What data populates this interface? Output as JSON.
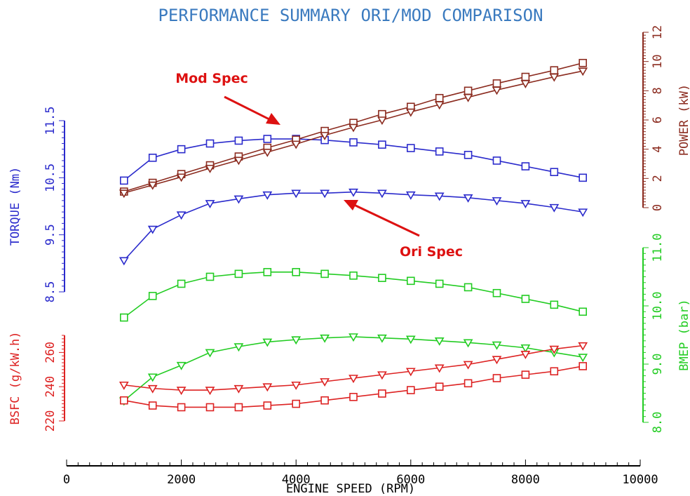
{
  "chart_data": {
    "type": "line",
    "title": "PERFORMANCE SUMMARY ORI/MOD COMPARISON",
    "xlabel": "ENGINE SPEED (RPM)",
    "xlim": [
      0,
      10000
    ],
    "x_ticks": [
      "0",
      "2000",
      "4000",
      "6000",
      "8000",
      "10000"
    ],
    "x": [
      1000,
      1500,
      2000,
      2500,
      3000,
      3500,
      4000,
      4500,
      5000,
      5500,
      6000,
      6500,
      7000,
      7500,
      8000,
      8500,
      9000
    ],
    "grid": false,
    "colors": {
      "title": "#3a7abf",
      "torque": "#2b2bcc",
      "power": "#8b2b1f",
      "bmep": "#22cc22",
      "bsfc": "#dd2222",
      "annotation": "#dd1111"
    },
    "axes": {
      "torque": {
        "label": "TORQUE (Nm)",
        "lim": [
          8.5,
          11.5
        ],
        "ticks": [
          "8.5",
          "9.5",
          "10.5",
          "11.5"
        ]
      },
      "power": {
        "label": "POWER (kW)",
        "lim": [
          0,
          12
        ],
        "ticks": [
          "0",
          "2",
          "4",
          "6",
          "8",
          "10",
          "12"
        ]
      },
      "bmep": {
        "label": "BMEP (bar)",
        "lim": [
          8.0,
          11.0
        ],
        "ticks": [
          "8.0",
          "9.0",
          "10.0",
          "11.0"
        ]
      },
      "bsfc": {
        "label": "BSFC (g/kW.h)",
        "lim": [
          220,
          270
        ],
        "ticks": [
          "220",
          "240",
          "260"
        ]
      }
    },
    "series": [
      {
        "quantity": "torque",
        "marker": "square",
        "values": [
          10.45,
          10.85,
          11.0,
          11.1,
          11.15,
          11.18,
          11.18,
          11.16,
          11.12,
          11.08,
          11.02,
          10.96,
          10.9,
          10.8,
          10.7,
          10.6,
          10.5
        ]
      },
      {
        "quantity": "torque",
        "marker": "triangle",
        "values": [
          9.05,
          9.6,
          9.85,
          10.05,
          10.13,
          10.2,
          10.23,
          10.23,
          10.25,
          10.23,
          10.2,
          10.18,
          10.15,
          10.1,
          10.05,
          9.98,
          9.9
        ]
      },
      {
        "quantity": "power",
        "marker": "square",
        "values": [
          1.1,
          1.7,
          2.3,
          2.9,
          3.5,
          4.1,
          4.65,
          5.25,
          5.8,
          6.4,
          6.9,
          7.5,
          8.0,
          8.5,
          8.95,
          9.4,
          9.9
        ]
      },
      {
        "quantity": "power",
        "marker": "triangle",
        "values": [
          1.0,
          1.55,
          2.1,
          2.7,
          3.25,
          3.8,
          4.35,
          4.95,
          5.5,
          6.0,
          6.55,
          7.05,
          7.55,
          8.05,
          8.5,
          8.95,
          9.35
        ]
      },
      {
        "quantity": "bmep",
        "marker": "square",
        "values": [
          9.8,
          10.17,
          10.38,
          10.5,
          10.55,
          10.58,
          10.58,
          10.55,
          10.52,
          10.48,
          10.43,
          10.38,
          10.32,
          10.22,
          10.12,
          10.02,
          9.9
        ]
      },
      {
        "quantity": "bmep",
        "marker": "triangle",
        "values": [
          8.37,
          8.78,
          8.98,
          9.2,
          9.3,
          9.38,
          9.42,
          9.45,
          9.47,
          9.45,
          9.43,
          9.4,
          9.37,
          9.33,
          9.28,
          9.2,
          9.12
        ]
      },
      {
        "quantity": "bsfc",
        "marker": "square",
        "values": [
          232,
          229,
          228,
          228,
          228,
          229,
          230,
          232,
          234,
          236,
          238,
          240,
          242,
          245,
          247,
          249,
          252
        ]
      },
      {
        "quantity": "bsfc",
        "marker": "triangle",
        "values": [
          241,
          239,
          238,
          238,
          239,
          240,
          241,
          243,
          245,
          247,
          249,
          251,
          253,
          256,
          259,
          262,
          264
        ]
      }
    ],
    "annotations": [
      {
        "text": "Mod Spec",
        "points_to": "square series"
      },
      {
        "text": "Ori Spec",
        "points_to": "triangle series"
      }
    ]
  }
}
